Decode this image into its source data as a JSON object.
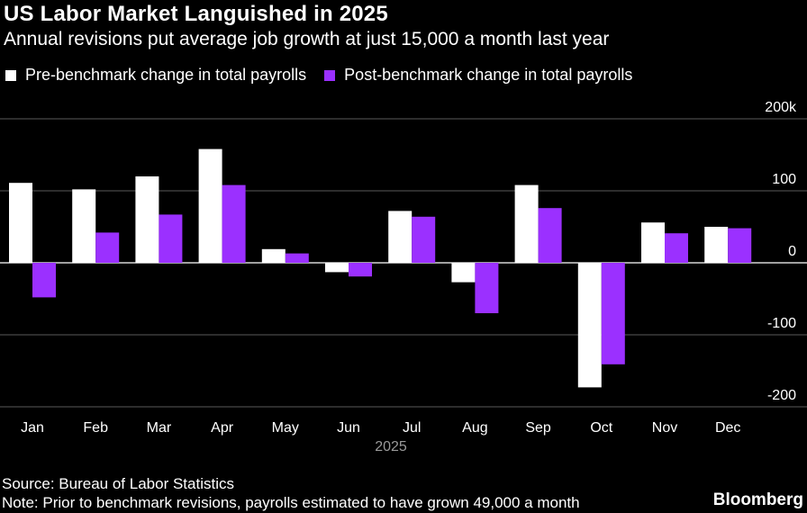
{
  "header": {
    "title": "US Labor Market Languished in 2025",
    "subtitle": "Annual revisions put average job growth at just 15,000 a month last year"
  },
  "legend": {
    "items": [
      {
        "label": "Pre-benchmark change in total payrolls",
        "color": "#ffffff"
      },
      {
        "label": "Post-benchmark change in total payrolls",
        "color": "#9b30ff"
      }
    ]
  },
  "footer": {
    "source": "Source: Bureau of Labor Statistics",
    "note": "Note: Prior to benchmark revisions, payrolls estimated to have grown 49,000 a month",
    "brand": "Bloomberg"
  },
  "chart_data": {
    "type": "bar",
    "categories": [
      "Jan",
      "Feb",
      "Mar",
      "Apr",
      "May",
      "Jun",
      "Jul",
      "Aug",
      "Sep",
      "Oct",
      "Nov",
      "Dec"
    ],
    "xlabel": "2025",
    "ylabel": "",
    "ylim": [
      -200,
      200
    ],
    "yticks": [
      {
        "value": 200,
        "label": "200k"
      },
      {
        "value": 100,
        "label": "100"
      },
      {
        "value": 0,
        "label": "0"
      },
      {
        "value": -100,
        "label": "-100"
      },
      {
        "value": -200,
        "label": "-200"
      }
    ],
    "grid": true,
    "legend_position": "top-left",
    "series": [
      {
        "name": "Pre-benchmark change in total payrolls",
        "color": "#ffffff",
        "values": [
          111,
          102,
          120,
          158,
          19,
          -13,
          72,
          -27,
          108,
          -173,
          56,
          50
        ]
      },
      {
        "name": "Post-benchmark change in total payrolls",
        "color": "#9b30ff",
        "values": [
          -48,
          42,
          67,
          108,
          13,
          -19,
          64,
          -70,
          76,
          -141,
          41,
          48
        ]
      }
    ]
  }
}
